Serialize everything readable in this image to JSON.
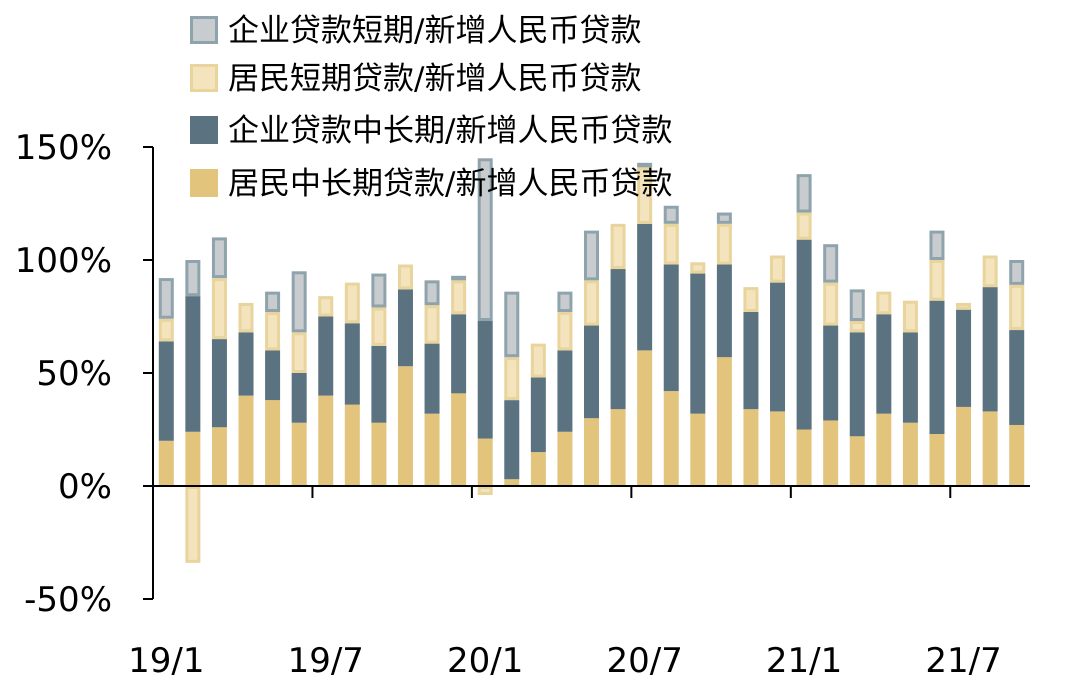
{
  "chart_data": {
    "type": "bar",
    "stacked": true,
    "title": "",
    "xlabel": "",
    "ylabel": "",
    "ylim": [
      -50,
      150
    ],
    "y_ticks": [
      "150%",
      "100%",
      "50%",
      "0%",
      "-50%"
    ],
    "y_tick_values": [
      150,
      100,
      50,
      0,
      -50
    ],
    "x_tick_labels": [
      {
        "label": "19/1",
        "index": 0
      },
      {
        "label": "19/7",
        "index": 6
      },
      {
        "label": "20/1",
        "index": 12
      },
      {
        "label": "20/7",
        "index": 18
      },
      {
        "label": "21/1",
        "index": 24
      },
      {
        "label": "21/7",
        "index": 30
      }
    ],
    "categories": [
      "2019-01",
      "2019-02",
      "2019-03",
      "2019-04",
      "2019-05",
      "2019-06",
      "2019-07",
      "2019-08",
      "2019-09",
      "2019-10",
      "2019-11",
      "2019-12",
      "2020-01",
      "2020-02",
      "2020-03",
      "2020-04",
      "2020-05",
      "2020-06",
      "2020-07",
      "2020-08",
      "2020-09",
      "2020-10",
      "2020-11",
      "2020-12",
      "2021-01",
      "2021-02",
      "2021-03",
      "2021-04",
      "2021-05",
      "2021-06",
      "2021-07",
      "2021-08",
      "2021-09"
    ],
    "legend_position": "top-left",
    "grid": false,
    "series": [
      {
        "name": "企业贷款短期/新增人民币贷款",
        "color": "#c8ccce",
        "border": "#8fa3ad",
        "values": [
          18,
          16,
          18,
          0,
          9,
          27,
          0,
          0,
          15,
          0,
          11,
          2,
          72,
          29,
          0,
          9,
          22,
          0,
          2,
          8,
          0,
          5,
          0,
          0,
          17,
          17,
          14,
          0,
          0,
          13,
          0,
          0,
          11
        ]
      },
      {
        "name": "居民短期贷款/新增人民币贷款",
        "color": "#f4e4be",
        "border": "#e8d49c",
        "values": [
          10,
          -34,
          27,
          13,
          17,
          18,
          9,
          18,
          17,
          11,
          17,
          15,
          -4,
          19,
          15,
          17,
          20,
          20,
          25,
          18,
          5,
          18,
          11,
          12,
          12,
          19,
          5,
          10,
          14,
          18,
          3,
          14,
          20
        ]
      },
      {
        "name": "企业贷款中长期/新增人民币贷款",
        "color": "#5b7281",
        "border": "#5b7281",
        "values": [
          44,
          60,
          39,
          28,
          22,
          22,
          35,
          36,
          34,
          34,
          31,
          35,
          52,
          35,
          33,
          36,
          41,
          62,
          56,
          56,
          62,
          41,
          43,
          57,
          84,
          42,
          46,
          44,
          40,
          59,
          43,
          55,
          42
        ]
      },
      {
        "name": "居民中长期贷款/新增人民币贷款",
        "color": "#e3c47c",
        "border": "#e3c47c",
        "values": [
          20,
          24,
          26,
          40,
          38,
          28,
          40,
          36,
          28,
          53,
          32,
          41,
          21,
          3,
          15,
          24,
          30,
          34,
          60,
          42,
          32,
          57,
          34,
          33,
          25,
          29,
          22,
          32,
          28,
          23,
          35,
          33,
          27
        ]
      }
    ]
  }
}
